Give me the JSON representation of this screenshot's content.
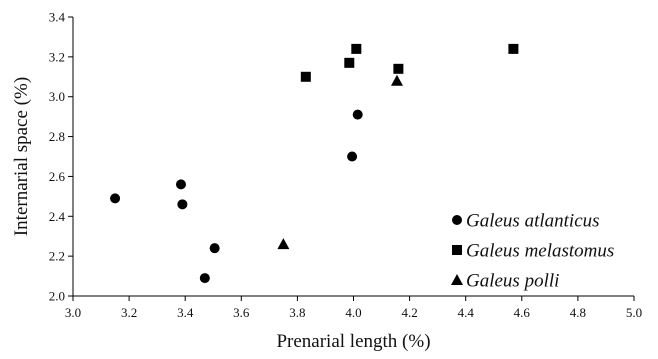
{
  "chart_data": {
    "type": "scatter",
    "xlabel": "Prenarial length (%)",
    "ylabel": "Internarial space (%)",
    "xlim": [
      3.0,
      5.0
    ],
    "ylim": [
      2.0,
      3.4
    ],
    "x_ticks": [
      "3.0",
      "3.2",
      "3.4",
      "3.6",
      "3.8",
      "4.0",
      "4.2",
      "4.4",
      "4.6",
      "4.8",
      "5.0"
    ],
    "y_ticks": [
      "2.0",
      "2.2",
      "2.4",
      "2.6",
      "2.8",
      "3.0",
      "3.2",
      "3.4"
    ],
    "grid": false,
    "legend_position": "bottom-right",
    "series": [
      {
        "name": "Galeus atlanticus",
        "marker": "circle",
        "color": "#000000",
        "points": [
          [
            3.15,
            2.49
          ],
          [
            3.385,
            2.56
          ],
          [
            3.39,
            2.46
          ],
          [
            3.47,
            2.09
          ],
          [
            3.505,
            2.24
          ],
          [
            3.995,
            2.7
          ],
          [
            4.015,
            2.91
          ]
        ]
      },
      {
        "name": "Galeus melastomus",
        "marker": "square",
        "color": "#000000",
        "points": [
          [
            3.83,
            3.1
          ],
          [
            3.985,
            3.17
          ],
          [
            4.01,
            3.24
          ],
          [
            4.16,
            3.14
          ],
          [
            4.57,
            3.24
          ]
        ]
      },
      {
        "name": "Galeus polli",
        "marker": "triangle",
        "color": "#000000",
        "points": [
          [
            3.75,
            2.26
          ],
          [
            4.155,
            3.08
          ]
        ]
      }
    ]
  }
}
